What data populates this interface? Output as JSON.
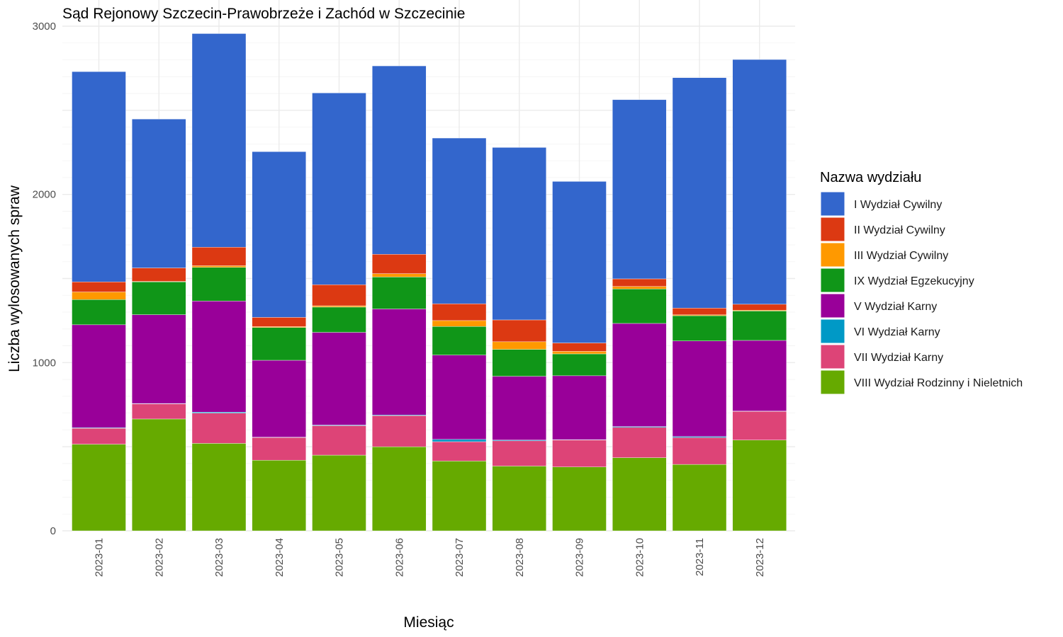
{
  "chart_data": {
    "type": "bar",
    "stacked": true,
    "title": "Sąd Rejonowy Szczecin-Prawobrzeże i Zachód w Szczecinie",
    "xlabel": "Miesiąc",
    "ylabel": "Liczba wylosowanych spraw",
    "ylim": [
      0,
      3000
    ],
    "yticks": [
      0,
      1000,
      2000,
      3000
    ],
    "grid": true,
    "legend_title": "Nazwa wydziału",
    "legend_position": "right",
    "categories": [
      "2023-01",
      "2023-02",
      "2023-03",
      "2023-04",
      "2023-05",
      "2023-06",
      "2023-07",
      "2023-08",
      "2023-09",
      "2023-10",
      "2023-11",
      "2023-12"
    ],
    "series": [
      {
        "name": "VIII Wydział Rodzinny i Nieletnich",
        "color": "#66aa00",
        "values": [
          515,
          665,
          520,
          420,
          450,
          500,
          415,
          385,
          380,
          435,
          395,
          540
        ]
      },
      {
        "name": "VII Wydział Karny",
        "color": "#dd4477",
        "values": [
          95,
          90,
          180,
          135,
          175,
          185,
          115,
          150,
          160,
          180,
          160,
          170
        ]
      },
      {
        "name": "VI Wydział Karny",
        "color": "#0099c6",
        "values": [
          3,
          2,
          6,
          2,
          4,
          4,
          14,
          5,
          2,
          5,
          6,
          2
        ]
      },
      {
        "name": "V Wydział Karny",
        "color": "#990099",
        "values": [
          612,
          528,
          660,
          457,
          551,
          630,
          501,
          379,
          380,
          613,
          568,
          420
        ]
      },
      {
        "name": "IX Wydział Egzekucyjny",
        "color": "#109618",
        "values": [
          150,
          195,
          200,
          195,
          150,
          190,
          170,
          160,
          130,
          205,
          150,
          175
        ]
      },
      {
        "name": "III Wydział Cywilny",
        "color": "#ff9900",
        "values": [
          45,
          3,
          10,
          5,
          8,
          20,
          35,
          45,
          15,
          15,
          5,
          5
        ]
      },
      {
        "name": "II Wydział Cywilny",
        "color": "#dc3912",
        "values": [
          60,
          80,
          110,
          55,
          125,
          115,
          100,
          130,
          50,
          45,
          40,
          35
        ]
      },
      {
        "name": "I Wydział Cywilny",
        "color": "#3366cc",
        "values": [
          1250,
          885,
          1270,
          985,
          1140,
          1120,
          985,
          1025,
          960,
          1065,
          1370,
          1455
        ]
      }
    ],
    "legend_order": [
      "I Wydział Cywilny",
      "II Wydział Cywilny",
      "III Wydział Cywilny",
      "IX Wydział Egzekucyjny",
      "V Wydział Karny",
      "VI Wydział Karny",
      "VII Wydział Karny",
      "VIII Wydział Rodzinny i Nieletnich"
    ]
  }
}
